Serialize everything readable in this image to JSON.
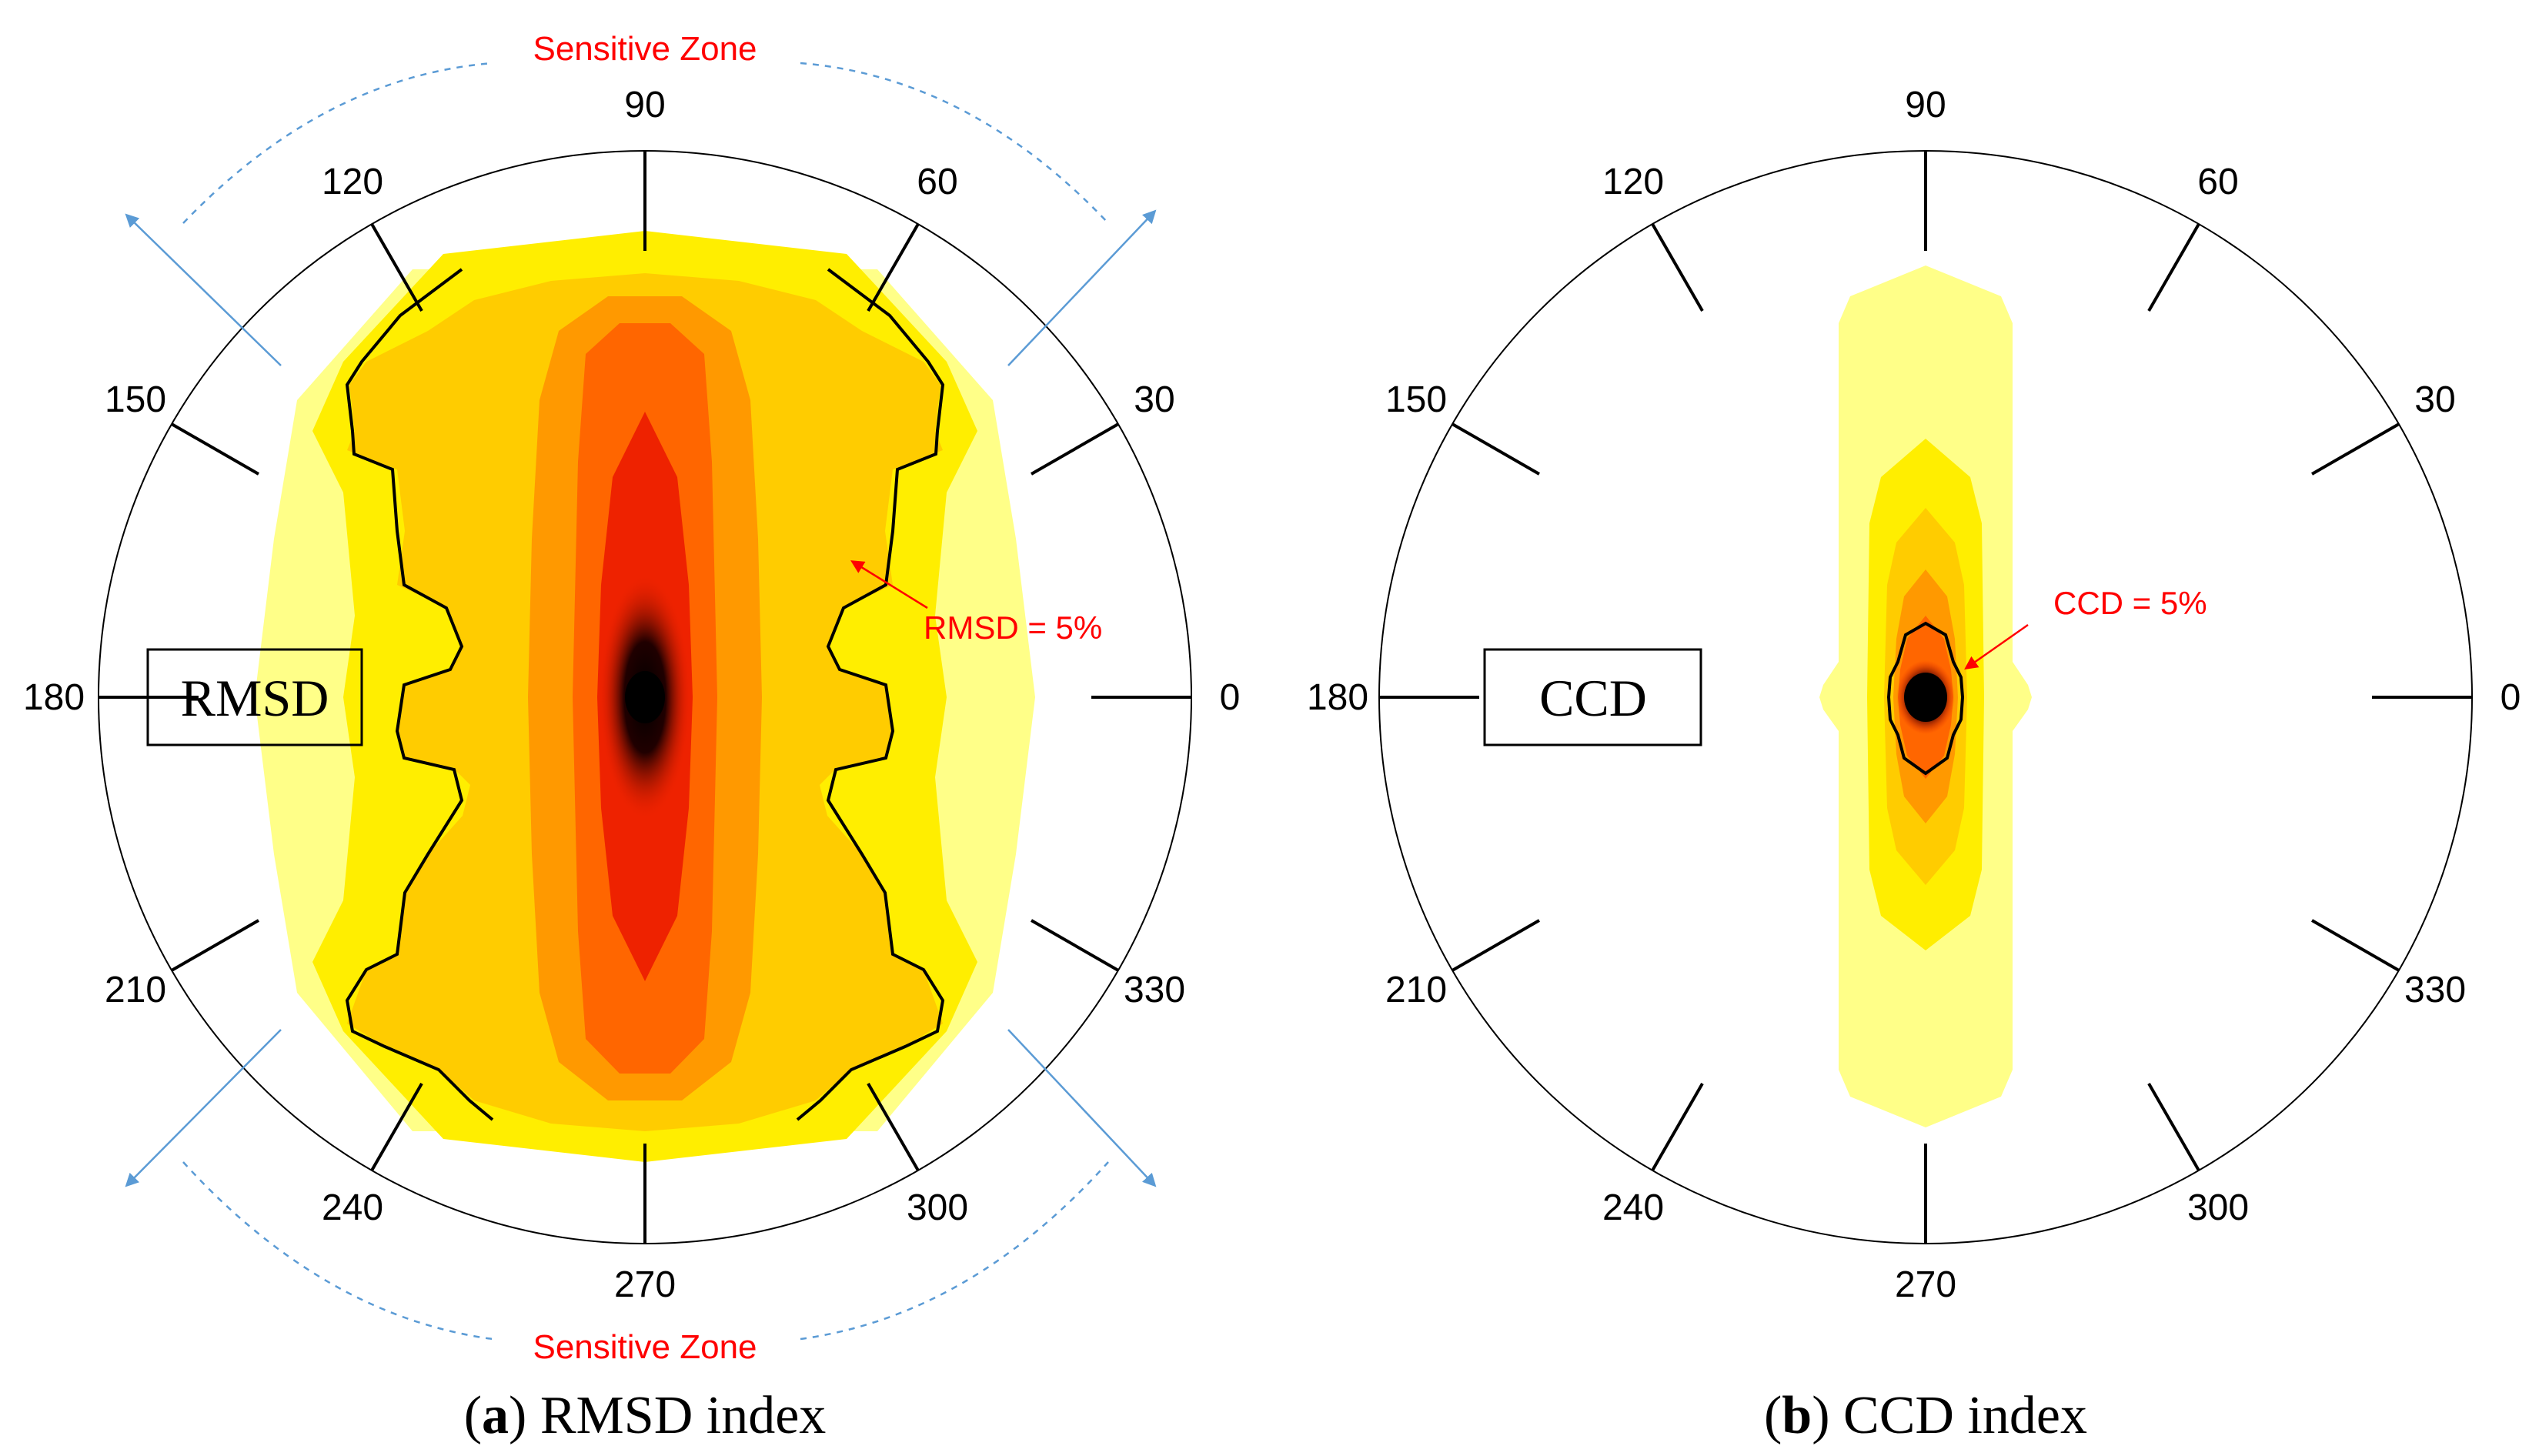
{
  "chart_data": [
    {
      "id": "a",
      "type": "polar-contour",
      "index_label": "RMSD",
      "caption_letter": "a",
      "caption_text": "RMSD index",
      "angle_ticks": [
        "0",
        "30",
        "60",
        "90",
        "120",
        "150",
        "180",
        "210",
        "240",
        "270",
        "300",
        "330"
      ],
      "contour_annotation": "RMSD = 5%",
      "zone_label_top": "Sensitive Zone",
      "zone_label_bottom": "Sensitive Zone",
      "threshold_percent": 5
    },
    {
      "id": "b",
      "type": "polar-contour",
      "index_label": "CCD",
      "caption_letter": "b",
      "caption_text": "CCD index",
      "angle_ticks": [
        "0",
        "30",
        "60",
        "90",
        "120",
        "150",
        "180",
        "210",
        "240",
        "270",
        "300",
        "330"
      ],
      "contour_annotation": "CCD = 5%",
      "threshold_percent": 5
    }
  ],
  "colors": {
    "level1": "#ffff88",
    "level2": "#ffee00",
    "level3": "#ffcc00",
    "level4": "#ff9900",
    "level5": "#ff6600",
    "level6": "#ee2200",
    "core": "#000000",
    "annotation": "#ff0000",
    "zone_arrow": "#5b9bd5"
  }
}
